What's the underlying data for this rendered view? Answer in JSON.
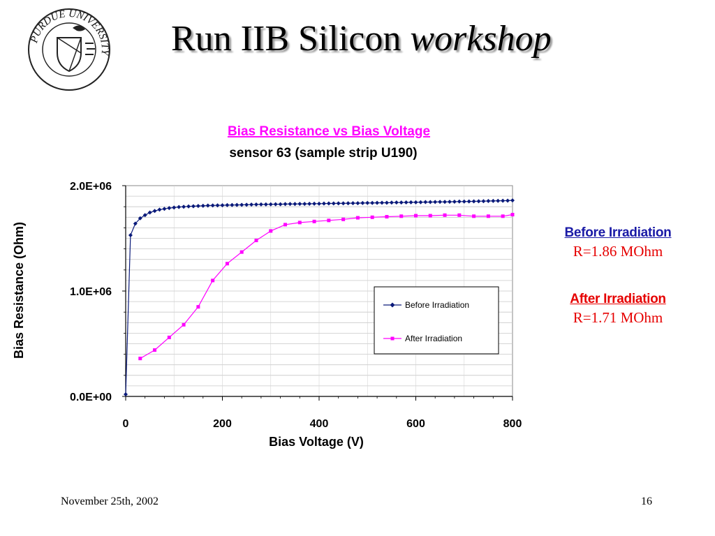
{
  "slide": {
    "title_main": "Run IIB Silicon ",
    "title_em": "workshop",
    "logo_text": "PURDUE UNIVERSITY",
    "footer_date": "November 25th, 2002",
    "footer_page": "16"
  },
  "notes": {
    "before_label": "Before Irradiation",
    "before_value": "R=1.86 MOhm",
    "after_label": "After Irradiation",
    "after_value": "R=1.71 MOhm"
  },
  "colors": {
    "before": "#0a1a7a",
    "after": "#ff00ff",
    "title": "#ff00ff",
    "note_red": "#e60000",
    "note_blue": "#1a1aa6"
  },
  "chart_data": {
    "type": "line",
    "title": "Bias Resistance vs Bias Voltage",
    "subtitle": "sensor 63 (sample strip U190)",
    "xlabel": "Bias Voltage (V)",
    "ylabel": "Bias Resistance (Ohm)",
    "xlim": [
      0,
      800
    ],
    "ylim": [
      0,
      2000000
    ],
    "x_ticks": [
      0,
      200,
      400,
      600,
      800
    ],
    "x_tick_labels": [
      "0",
      "200",
      "400",
      "600",
      "800"
    ],
    "y_ticks": [
      0,
      1000000,
      2000000
    ],
    "y_tick_labels": [
      "0.0E+00",
      "1.0E+06",
      "2.0E+06"
    ],
    "grid": true,
    "legend_position": "lower-right",
    "series": [
      {
        "name": "Before Irradiation",
        "marker": "diamond",
        "x": [
          0,
          10,
          20,
          30,
          40,
          50,
          60,
          70,
          80,
          90,
          100,
          110,
          120,
          130,
          140,
          150,
          160,
          170,
          180,
          190,
          200,
          210,
          220,
          230,
          240,
          250,
          260,
          270,
          280,
          290,
          300,
          310,
          320,
          330,
          340,
          350,
          360,
          370,
          380,
          390,
          400,
          410,
          420,
          430,
          440,
          450,
          460,
          470,
          480,
          490,
          500,
          510,
          520,
          530,
          540,
          550,
          560,
          570,
          580,
          590,
          600,
          610,
          620,
          630,
          640,
          650,
          660,
          670,
          680,
          690,
          700,
          710,
          720,
          730,
          740,
          750,
          760,
          770,
          780,
          790,
          800
        ],
        "values": [
          20000,
          1530000,
          1640000,
          1690000,
          1720000,
          1745000,
          1760000,
          1772000,
          1780000,
          1787000,
          1792000,
          1797000,
          1800000,
          1803000,
          1805000,
          1807000,
          1809000,
          1811000,
          1812000,
          1813000,
          1814000,
          1815000,
          1816000,
          1817000,
          1818000,
          1819000,
          1820000,
          1821000,
          1822000,
          1822000,
          1823000,
          1824000,
          1824000,
          1825000,
          1826000,
          1826000,
          1827000,
          1827000,
          1828000,
          1829000,
          1829000,
          1830000,
          1831000,
          1831000,
          1832000,
          1832000,
          1833000,
          1834000,
          1834000,
          1835000,
          1836000,
          1836000,
          1837000,
          1838000,
          1838000,
          1839000,
          1840000,
          1840000,
          1841000,
          1842000,
          1842000,
          1843000,
          1844000,
          1844000,
          1845000,
          1846000,
          1846000,
          1847000,
          1848000,
          1849000,
          1849000,
          1850000,
          1851000,
          1852000,
          1853000,
          1854000,
          1855000,
          1856000,
          1857000,
          1858000,
          1860000
        ]
      },
      {
        "name": "After Irradiation",
        "marker": "square",
        "x": [
          30,
          60,
          90,
          120,
          150,
          180,
          210,
          240,
          270,
          300,
          330,
          360,
          390,
          420,
          450,
          480,
          510,
          540,
          570,
          600,
          630,
          660,
          690,
          720,
          750,
          780,
          800
        ],
        "values": [
          360000,
          440000,
          560000,
          680000,
          850000,
          1100000,
          1260000,
          1370000,
          1480000,
          1570000,
          1630000,
          1650000,
          1660000,
          1670000,
          1680000,
          1695000,
          1700000,
          1705000,
          1710000,
          1715000,
          1715000,
          1720000,
          1720000,
          1710000,
          1710000,
          1710000,
          1725000
        ]
      }
    ]
  }
}
